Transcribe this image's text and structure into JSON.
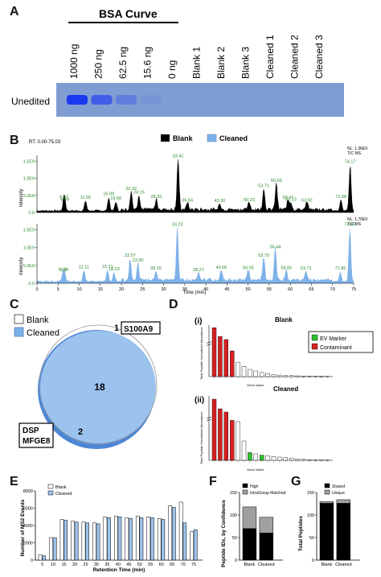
{
  "panels": {
    "A": "A",
    "B": "B",
    "C": "C",
    "D": "D",
    "E": "E",
    "F": "F",
    "G": "G"
  },
  "panelA": {
    "title": "BSA Curve",
    "row_label": "Unedited",
    "lanes": [
      "1000 ng",
      "250 ng",
      "62.5 ng",
      "15.6 ng",
      "0 ng",
      "Blank 1",
      "Blank 2",
      "Blank 3",
      "Cleaned 1",
      "Cleaned 2",
      "Cleaned 3"
    ],
    "gel_color": "#7f9dd3",
    "band_intensity": [
      1.0,
      0.75,
      0.45,
      0.15,
      0,
      0,
      0,
      0,
      0,
      0,
      0
    ]
  },
  "panelB": {
    "rt_label": "RT: 0.00-75.03",
    "legend": {
      "blank": "Blank",
      "cleaned": "Cleaned"
    },
    "top_nl": "NL: 1.36E9",
    "top_tic": "TIC MS",
    "bottom_nl": "NL: 1.70E9",
    "bottom_tic": "TIC MS",
    "ylabel": "Intensity",
    "xlabel": "Time (min)",
    "blank_color": "#000000",
    "cleaned_color": "#7eb1e8",
    "label_color": "#2e8b2e",
    "top_yticks": [
      "0.0",
      "5.0E8",
      "1.0E9",
      "1.5E9"
    ],
    "bottom_yticks": [
      "0.0",
      "5.0E8",
      "1.0E9",
      "1.5E9"
    ],
    "xticks": [
      "0",
      "5",
      "10",
      "15",
      "20",
      "25",
      "30",
      "35",
      "40",
      "45",
      "50",
      "55",
      "60",
      "65",
      "70",
      "75"
    ],
    "top_peaks": [
      {
        "rt": 6.37,
        "label": "6.37"
      },
      {
        "rt": 6.59,
        "label": "6.59"
      },
      {
        "rt": 11.5,
        "label": "11.50"
      },
      {
        "rt": 16.99,
        "label": "16.99"
      },
      {
        "rt": 18.68,
        "label": "18.68"
      },
      {
        "rt": 22.32,
        "label": "22.32"
      },
      {
        "rt": 24.15,
        "label": "24.15"
      },
      {
        "rt": 28.26,
        "label": "28.26"
      },
      {
        "rt": 33.41,
        "label": "33.41"
      },
      {
        "rt": 35.64,
        "label": "35.64"
      },
      {
        "rt": 43.3,
        "label": "43.30"
      },
      {
        "rt": 50.23,
        "label": "50.23"
      },
      {
        "rt": 53.71,
        "label": "53.71"
      },
      {
        "rt": 56.69,
        "label": "56.69"
      },
      {
        "rt": 59.47,
        "label": "59.47"
      },
      {
        "rt": 60.13,
        "label": "60.13"
      },
      {
        "rt": 63.92,
        "label": "63.92"
      },
      {
        "rt": 71.98,
        "label": "71.98"
      },
      {
        "rt": 74.17,
        "label": "74.17"
      }
    ],
    "bottom_peaks": [
      {
        "rt": 6.16,
        "label": "6.16"
      },
      {
        "rt": 6.57,
        "label": "6.57"
      },
      {
        "rt": 11.11,
        "label": "11.11"
      },
      {
        "rt": 16.71,
        "label": "16.71"
      },
      {
        "rt": 18.23,
        "label": "18.23"
      },
      {
        "rt": 22.07,
        "label": "22.07"
      },
      {
        "rt": 23.9,
        "label": "23.90"
      },
      {
        "rt": 28.15,
        "label": "28.15"
      },
      {
        "rt": 33.23,
        "label": "33.23"
      },
      {
        "rt": 38.27,
        "label": "38.27"
      },
      {
        "rt": 43.66,
        "label": "43.66"
      },
      {
        "rt": 50.05,
        "label": "50.05"
      },
      {
        "rt": 53.7,
        "label": "53.70"
      },
      {
        "rt": 56.44,
        "label": "56.44"
      },
      {
        "rt": 59.05,
        "label": "59.05"
      },
      {
        "rt": 63.71,
        "label": "63.71"
      },
      {
        "rt": 71.85,
        "label": "71.85"
      },
      {
        "rt": 74.09,
        "label": "74.09"
      }
    ]
  },
  "panelC": {
    "legend_blank": "Blank",
    "legend_cleaned": "Cleaned",
    "blank_only": "1",
    "blank_only_protein": "S100A9",
    "shared": "18",
    "cleaned_only": "2",
    "cleaned_only_proteins": [
      "DSP",
      "MFGE8"
    ],
    "cleaned_color": "#7eb1e8"
  },
  "panelD": {
    "top_title": "Blank",
    "bottom_title": "Cleaned",
    "sub_i": "(i)",
    "sub_ii": "(ii)",
    "legend_ev": "EV Marker",
    "legend_contaminant": "Contaminant",
    "ylabel": "Total Peptide Normalized Abundance",
    "xlabel": "Gene Name",
    "ev_color": "#2fbf2f",
    "contaminant_color": "#d62020"
  },
  "chart_data": [
    {
      "type": "bar",
      "xlabel": "Retention Time (min)",
      "ylabel": "Number of MS2 Events",
      "categories": [
        "5",
        "10",
        "15",
        "20",
        "25",
        "30",
        "35",
        "40",
        "45",
        "50",
        "55",
        "60",
        "65",
        "70",
        "75"
      ],
      "ylim": [
        0,
        8000
      ],
      "yticks": [
        "0",
        "2000",
        "4000",
        "6000",
        "8000"
      ],
      "series": [
        {
          "name": "Blank",
          "color": "#ffffff",
          "values": [
            600,
            2600,
            4700,
            4500,
            4400,
            4300,
            5000,
            5100,
            4900,
            5100,
            5000,
            4800,
            6300,
            6700,
            3300
          ]
        },
        {
          "name": "Cleaned",
          "color": "#9cc3ea",
          "values": [
            500,
            2600,
            4600,
            4400,
            4300,
            4200,
            4900,
            5000,
            4800,
            4900,
            4900,
            4700,
            6100,
            4300,
            3500
          ]
        }
      ]
    },
    {
      "type": "bar",
      "xlabel": "",
      "ylabel": "Peptide IDs, by Confidence",
      "categories": [
        "Blank",
        "Cleaned"
      ],
      "ylim": [
        0,
        150
      ],
      "yticks": [
        "0",
        "50",
        "100",
        "150"
      ],
      "series": [
        {
          "name": "High",
          "color": "#000000",
          "values": [
            70,
            60
          ]
        },
        {
          "name": "IntraGroup Matched",
          "color": "#a0a0a0",
          "values": [
            48,
            35
          ]
        }
      ]
    },
    {
      "type": "bar",
      "xlabel": "",
      "ylabel": "Total Peptides",
      "categories": [
        "Blank",
        "Cleaned"
      ],
      "ylim": [
        0,
        150
      ],
      "yticks": [
        "0",
        "50",
        "100",
        "150"
      ],
      "series": [
        {
          "name": "Shared",
          "color": "#000000",
          "values": [
            126,
            126
          ]
        },
        {
          "name": "Unique",
          "color": "#a0a0a0",
          "values": [
            4,
            8
          ]
        }
      ]
    }
  ]
}
